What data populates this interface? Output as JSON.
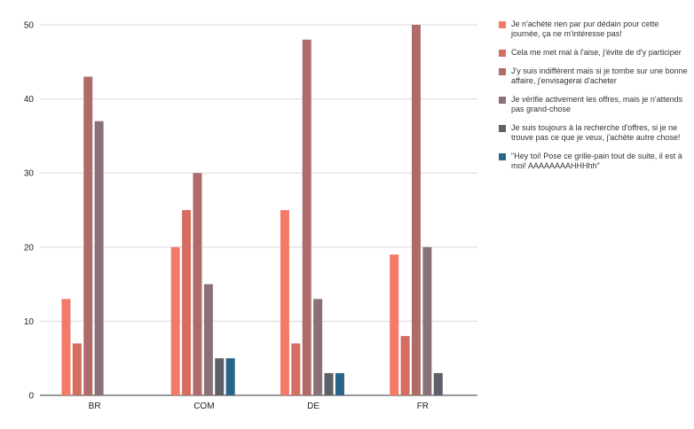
{
  "chart_data": {
    "type": "bar",
    "categories": [
      "BR",
      "COM",
      "DE",
      "FR"
    ],
    "ylim": [
      0,
      50
    ],
    "yticks": [
      0,
      10,
      20,
      30,
      40,
      50
    ],
    "grid": true,
    "legend_position": "right",
    "series": [
      {
        "name": "Je n'achète rien par pur dédain pour cette journée, ça ne m'intéresse pas!",
        "color": "#f47a68",
        "values": [
          13,
          20,
          25,
          19
        ]
      },
      {
        "name": "Cela me met mal à l'aise, j'évite de d'y participer",
        "color": "#d46d62",
        "values": [
          7,
          25,
          7,
          8
        ]
      },
      {
        "name": "J'y suis indifférent mais si je tombe sur une bonne affaire, j'envisagerai d'acheter",
        "color": "#af6b6a",
        "values": [
          43,
          30,
          48,
          50
        ]
      },
      {
        "name": "Je vérifie activement les offres, mais je n'attends pas grand-chose",
        "color": "#8a7077",
        "values": [
          37,
          15,
          13,
          20
        ]
      },
      {
        "name": "Je suis toujours à la recherche d'offres, si je ne trouve pas ce que je veux, j'achète autre chose!",
        "color": "#5d6068",
        "values": [
          0,
          5,
          3,
          3
        ]
      },
      {
        "name": "\"Hey toi! Pose ce grille-pain tout de suite, il est à moi! AAAAAAAAHHHhh\"",
        "color": "#2a6587",
        "values": [
          0,
          5,
          3,
          0
        ]
      }
    ]
  }
}
